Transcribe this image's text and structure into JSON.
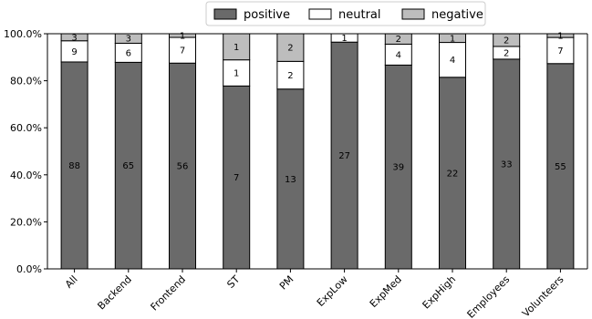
{
  "chart_data": {
    "type": "bar",
    "stacked": true,
    "normalized_percent": true,
    "categories": [
      "All",
      "Backend",
      "Frontend",
      "ST",
      "PM",
      "ExpLow",
      "ExpMed",
      "ExpHigh",
      "Employees",
      "Volunteers"
    ],
    "series": [
      {
        "name": "positive",
        "color": "#6a6a6a",
        "values": [
          88,
          65,
          56,
          7,
          13,
          27,
          39,
          22,
          33,
          55
        ]
      },
      {
        "name": "neutral",
        "color": "#ffffff",
        "values": [
          9,
          6,
          7,
          1,
          2,
          1,
          4,
          4,
          2,
          7
        ]
      },
      {
        "name": "negative",
        "color": "#bdbdbd",
        "values": [
          3,
          3,
          1,
          1,
          2,
          0,
          2,
          1,
          2,
          1
        ]
      }
    ],
    "value_labels": {
      "positive": [
        "88",
        "65",
        "56",
        "7",
        "13",
        "27",
        "39",
        "22",
        "33",
        "55"
      ],
      "neutral": [
        "9",
        "6",
        "7",
        "1",
        "2",
        "1",
        "4",
        "4",
        "2",
        "7"
      ],
      "negative": [
        "3",
        "3",
        "1",
        "1",
        "2",
        "",
        "2",
        "1",
        "2",
        "1"
      ]
    },
    "y_ticks": [
      "0.0%",
      "20.0%",
      "40.0%",
      "60.0%",
      "80.0%",
      "100.0%"
    ],
    "ylim": [
      0,
      100
    ],
    "grid": false,
    "legend_position": "top-center",
    "title": "",
    "xlabel": "",
    "ylabel": ""
  }
}
